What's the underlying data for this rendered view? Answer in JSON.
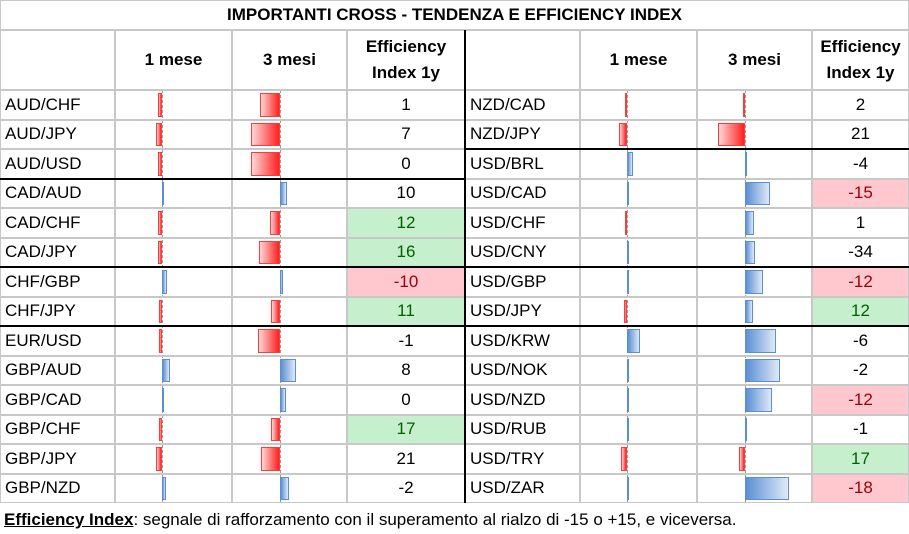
{
  "title": "IMPORTANTI CROSS - TENDENZA E EFFICIENCY INDEX",
  "headers": {
    "m1": "1 mese",
    "m3": "3 mesi",
    "ei_line1": "Efficiency",
    "ei_line2": "Index 1y"
  },
  "colors": {
    "negative_bar": "#ff2020",
    "positive_bar": "#5b8fd4",
    "highlight_green": "#c6efce",
    "highlight_red": "#ffc7ce"
  },
  "left_table": [
    {
      "pair": "AUD/CHF",
      "m1": -0.5,
      "m3": -2.5,
      "ei": "1",
      "hl": ""
    },
    {
      "pair": "AUD/JPY",
      "m1": -0.8,
      "m3": -3.6,
      "ei": "7",
      "hl": ""
    },
    {
      "pair": "AUD/USD",
      "m1": -0.5,
      "m3": -3.6,
      "ei": "0",
      "hl": ""
    },
    {
      "pair": "CAD/AUD",
      "m1": 0.0,
      "m3": 0.9,
      "ei": "10",
      "hl": ""
    },
    {
      "pair": "CAD/CHF",
      "m1": -0.5,
      "m3": -1.3,
      "ei": "12",
      "hl": "green"
    },
    {
      "pair": "CAD/JPY",
      "m1": -0.5,
      "m3": -2.6,
      "ei": "16",
      "hl": "green"
    },
    {
      "pair": "CHF/GBP",
      "m1": 0.6,
      "m3": 0.4,
      "ei": "-10",
      "hl": "red"
    },
    {
      "pair": "CHF/JPY",
      "m1": -0.4,
      "m3": -1.1,
      "ei": "11",
      "hl": "green"
    },
    {
      "pair": "EUR/USD",
      "m1": -0.4,
      "m3": -2.8,
      "ei": "-1",
      "hl": ""
    },
    {
      "pair": "GBP/AUD",
      "m1": 1.0,
      "m3": 2.0,
      "ei": "8",
      "hl": ""
    },
    {
      "pair": "GBP/CAD",
      "m1": 0.2,
      "m3": 0.8,
      "ei": "0",
      "hl": ""
    },
    {
      "pair": "GBP/CHF",
      "m1": -0.4,
      "m3": -1.1,
      "ei": "17",
      "hl": "green"
    },
    {
      "pair": "GBP/JPY",
      "m1": -0.7,
      "m3": -2.4,
      "ei": "21",
      "hl": ""
    },
    {
      "pair": "GBP/NZD",
      "m1": 0.5,
      "m3": 1.1,
      "ei": "-2",
      "hl": ""
    }
  ],
  "right_table": [
    {
      "pair": "NZD/CAD",
      "m1": -0.1,
      "m3": -0.3,
      "ei": "2",
      "hl": ""
    },
    {
      "pair": "NZD/JPY",
      "m1": -1.0,
      "m3": -3.4,
      "ei": "21",
      "hl": ""
    },
    {
      "pair": "USD/BRL",
      "m1": 0.8,
      "m3": 0.3,
      "ei": "-4",
      "hl": ""
    },
    {
      "pair": "USD/CAD",
      "m1": 0.3,
      "m3": 3.1,
      "ei": "-15",
      "hl": "red"
    },
    {
      "pair": "USD/CHF",
      "m1": -0.3,
      "m3": 1.1,
      "ei": "1",
      "hl": ""
    },
    {
      "pair": "USD/CNY",
      "m1": 0.0,
      "m3": 1.2,
      "ei": "-34",
      "hl": ""
    },
    {
      "pair": "USD/GBP",
      "m1": 0.0,
      "m3": 2.2,
      "ei": "-12",
      "hl": "red"
    },
    {
      "pair": "USD/JPY",
      "m1": -0.4,
      "m3": 1.0,
      "ei": "12",
      "hl": "green"
    },
    {
      "pair": "USD/KRW",
      "m1": 1.6,
      "m3": 3.9,
      "ei": "-6",
      "hl": ""
    },
    {
      "pair": "USD/NOK",
      "m1": 0.2,
      "m3": 4.4,
      "ei": "-2",
      "hl": ""
    },
    {
      "pair": "USD/NZD",
      "m1": 0.1,
      "m3": 3.4,
      "ei": "-12",
      "hl": "red"
    },
    {
      "pair": "USD/RUB",
      "m1": 0.2,
      "m3": 0.2,
      "ei": "-1",
      "hl": ""
    },
    {
      "pair": "USD/TRY",
      "m1": -0.7,
      "m3": -0.8,
      "ei": "17",
      "hl": "green"
    },
    {
      "pair": "USD/ZAR",
      "m1": 0.0,
      "m3": 5.5,
      "ei": "-18",
      "hl": "red"
    }
  ],
  "footer": {
    "label": "Efficiency Index",
    "text": ": segnale di rafforzamento con il superamento al rialzo di -15 o +15, e viceversa."
  }
}
